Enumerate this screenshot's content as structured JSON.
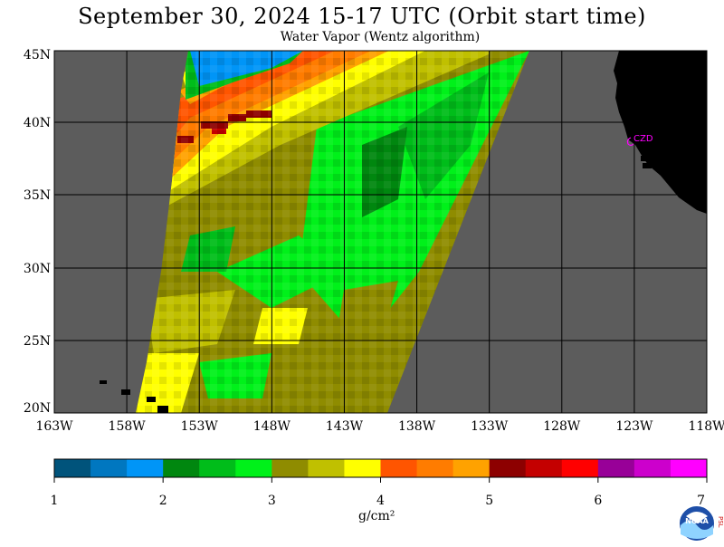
{
  "header": {
    "title": "September 30, 2024  15-17 UTC  (Orbit start time)",
    "subtitle": "Water Vapor (Wentz algorithm)"
  },
  "map": {
    "lat_labels": [
      "45N",
      "40N",
      "35N",
      "30N",
      "25N",
      "20N"
    ],
    "lon_labels": [
      "163W",
      "158W",
      "153W",
      "148W",
      "143W",
      "138W",
      "133W",
      "128W",
      "123W",
      "118W"
    ],
    "station_label": "CZD",
    "colors": {
      "no_data": "#5c5c5c",
      "land": "#000000",
      "station": "#ff00ff",
      "grid": "#000000"
    }
  },
  "colorbar": {
    "tick_labels": [
      "1",
      "2",
      "3",
      "4",
      "5",
      "6",
      "7"
    ],
    "units": "g/cm²",
    "colors": [
      "#00537b",
      "#0077c0",
      "#0095f7",
      "#00870f",
      "#00bd1a",
      "#00f11a",
      "#8f8c00",
      "#c0c000",
      "#ffff00",
      "#ff5500",
      "#ff7c00",
      "#ffa200",
      "#8d0000",
      "#c40000",
      "#ff0000",
      "#980098",
      "#cc00cc",
      "#ff00ff"
    ]
  },
  "logo": {
    "text": "NOAA",
    "side_text": "PSL"
  }
}
